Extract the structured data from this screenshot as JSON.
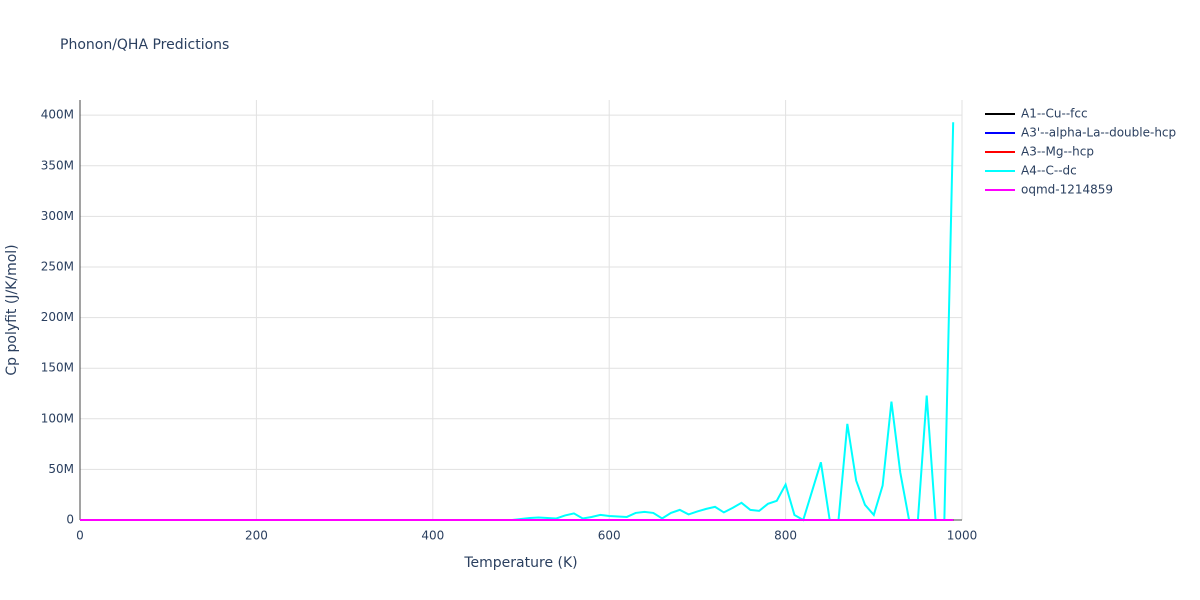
{
  "chart_data": {
    "type": "line",
    "title": "Phonon/QHA Predictions",
    "x_label": "Temperature (K)",
    "y_label": "Cp polyfit (J/K/mol)",
    "x": [
      0,
      10,
      20,
      30,
      40,
      50,
      60,
      70,
      80,
      90,
      100,
      110,
      120,
      130,
      140,
      150,
      160,
      170,
      180,
      190,
      200,
      210,
      220,
      230,
      240,
      250,
      260,
      270,
      280,
      290,
      300,
      310,
      320,
      330,
      340,
      350,
      360,
      370,
      380,
      390,
      400,
      410,
      420,
      430,
      440,
      450,
      460,
      470,
      480,
      490,
      500,
      510,
      520,
      530,
      540,
      550,
      560,
      570,
      580,
      590,
      600,
      610,
      620,
      630,
      640,
      650,
      660,
      670,
      680,
      690,
      700,
      710,
      720,
      730,
      740,
      750,
      760,
      770,
      780,
      790,
      800,
      810,
      820,
      830,
      840,
      850,
      860,
      870,
      880,
      890,
      900,
      910,
      920,
      930,
      940,
      950,
      960,
      970,
      980,
      990
    ],
    "series": [
      {
        "name": "A1--Cu--fcc",
        "color": "#000000",
        "values": [
          0,
          0,
          0,
          0,
          0,
          0,
          0,
          0,
          0,
          0,
          0,
          0,
          0,
          0,
          0,
          0,
          0,
          0,
          0,
          0,
          0,
          0,
          0,
          0,
          0,
          0,
          0,
          0,
          0,
          0,
          0,
          0,
          0,
          0,
          0,
          0,
          0,
          0,
          0,
          0,
          0,
          0,
          0,
          0,
          0,
          0,
          0,
          0,
          0,
          0,
          0,
          0,
          0,
          0,
          0,
          0,
          0,
          0,
          0,
          0,
          0,
          0,
          0,
          0,
          0,
          0,
          0,
          0,
          0,
          0,
          0,
          0,
          0,
          0,
          0,
          0,
          0,
          0,
          0,
          0,
          0,
          0,
          0,
          0,
          0,
          0,
          0,
          0,
          0,
          0,
          0,
          0,
          0,
          0,
          0,
          0,
          0,
          0,
          0,
          0
        ]
      },
      {
        "name": "A3'--alpha-La--double-hcp",
        "color": "#0000ff",
        "values": [
          0,
          0,
          0,
          0,
          0,
          0,
          0,
          0,
          0,
          0,
          0,
          0,
          0,
          0,
          0,
          0,
          0,
          0,
          0,
          0,
          0,
          0,
          0,
          0,
          0,
          0,
          0,
          0,
          0,
          0,
          0,
          0,
          0,
          0,
          0,
          0,
          0,
          0,
          0,
          0,
          0,
          0,
          0,
          0,
          0,
          0,
          0,
          0,
          0,
          0,
          0,
          0,
          0,
          0,
          0,
          0,
          0,
          0,
          0,
          0,
          0,
          0,
          0,
          0,
          0,
          0,
          0,
          0,
          0,
          0,
          0,
          0,
          0,
          0,
          0,
          0,
          0,
          0,
          0,
          0,
          0,
          0,
          0,
          0,
          0,
          0,
          0,
          0,
          0,
          0,
          0,
          0,
          0,
          0,
          0,
          0,
          0,
          0,
          0,
          0
        ]
      },
      {
        "name": "A3--Mg--hcp",
        "color": "#ff0000",
        "values": [
          0,
          0,
          0,
          0,
          0,
          0,
          0,
          0,
          0,
          0,
          0,
          0,
          0,
          0,
          0,
          0,
          0,
          0,
          0,
          0,
          0,
          0,
          0,
          0,
          0,
          0,
          0,
          0,
          0,
          0,
          0,
          0,
          0,
          0,
          0,
          0,
          0,
          0,
          0,
          0,
          0,
          0,
          0,
          0,
          0,
          0,
          0,
          0,
          0,
          0,
          0,
          0,
          0,
          0,
          0,
          0,
          0,
          0,
          0,
          0,
          0,
          0,
          0,
          0,
          0,
          0,
          0,
          0,
          0,
          0,
          0,
          0,
          0,
          0,
          0,
          0,
          0,
          0,
          0,
          0,
          0,
          0,
          0,
          0,
          0,
          0,
          0,
          0,
          0,
          0,
          0,
          0,
          0,
          0,
          0,
          0,
          0,
          0,
          0,
          0
        ]
      },
      {
        "name": "A4--C--dc",
        "color": "#00ffff",
        "values": [
          0,
          0,
          0,
          0,
          0,
          0,
          0,
          0,
          0,
          0,
          0,
          0,
          0,
          0,
          0,
          0,
          0,
          0,
          0,
          0,
          0,
          0,
          0,
          0,
          0,
          0,
          0,
          0,
          0,
          0,
          0,
          0,
          0,
          0,
          0,
          0,
          0,
          0,
          0,
          0,
          0,
          0,
          0,
          0,
          0,
          0,
          0,
          0,
          0,
          0,
          1000000,
          2000000,
          2500000,
          2000000,
          1500000,
          4500000,
          6500000,
          1500000,
          3000000,
          5000000,
          4000000,
          3500000,
          3000000,
          7000000,
          8000000,
          7000000,
          1500000,
          7000000,
          10000000,
          5500000,
          8500000,
          11000000,
          13000000,
          7500000,
          12000000,
          17000000,
          10000000,
          9000000,
          16000000,
          19000000,
          35000000,
          5000000,
          0,
          28500000,
          57000000,
          0,
          0,
          95000000,
          39000000,
          15000000,
          5000000,
          34000000,
          117000000,
          47000000,
          0,
          0,
          123000000,
          0,
          0,
          393000000
        ]
      },
      {
        "name": "oqmd-1214859",
        "color": "#ff00ff",
        "values": [
          0,
          0,
          0,
          0,
          0,
          0,
          0,
          0,
          0,
          0,
          0,
          0,
          0,
          0,
          0,
          0,
          0,
          0,
          0,
          0,
          0,
          0,
          0,
          0,
          0,
          0,
          0,
          0,
          0,
          0,
          0,
          0,
          0,
          0,
          0,
          0,
          0,
          0,
          0,
          0,
          0,
          0,
          0,
          0,
          0,
          0,
          0,
          0,
          0,
          0,
          0,
          0,
          0,
          0,
          0,
          0,
          0,
          0,
          0,
          0,
          0,
          0,
          0,
          0,
          0,
          0,
          0,
          0,
          0,
          0,
          0,
          0,
          0,
          0,
          0,
          0,
          0,
          0,
          0,
          0,
          0,
          0,
          0,
          0,
          0,
          0,
          0,
          0,
          0,
          0,
          0,
          0,
          0,
          0,
          0,
          0,
          0,
          0,
          0,
          0
        ]
      }
    ],
    "xlim": [
      0,
      1000
    ],
    "xticks": [
      0,
      200,
      400,
      600,
      800,
      1000
    ],
    "ylim": [
      0,
      415000000
    ],
    "yticks": [
      0,
      {
        "value": 50000000,
        "label": "50M"
      },
      {
        "value": 100000000,
        "label": "100M"
      },
      {
        "value": 150000000,
        "label": "150M"
      },
      {
        "value": 200000000,
        "label": "200M"
      },
      {
        "value": 250000000,
        "label": "250M"
      },
      {
        "value": 300000000,
        "label": "300M"
      },
      {
        "value": 350000000,
        "label": "350M"
      },
      {
        "value": 400000000,
        "label": "400M"
      }
    ],
    "grid": true,
    "legend": "right"
  }
}
